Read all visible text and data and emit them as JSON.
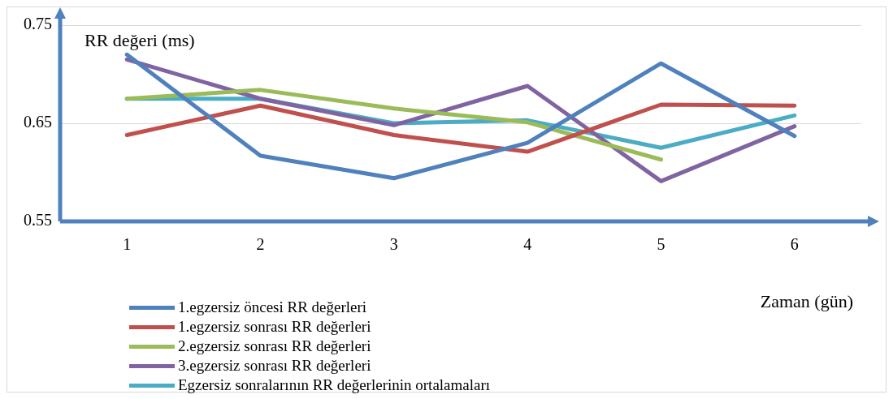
{
  "chart_data": {
    "type": "line",
    "xlabel": "Zaman (gün)",
    "ylabel": "RR değeri (ms)",
    "categories": [
      "1",
      "2",
      "3",
      "4",
      "5",
      "6"
    ],
    "series": [
      {
        "name": "1.egzersiz öncesi RR değerleri",
        "color": "#4f81bd",
        "values": [
          0.72,
          0.617,
          0.594,
          0.63,
          0.711,
          0.637
        ]
      },
      {
        "name": "1.egzersiz sonrası RR değerleri",
        "color": "#c0504d",
        "values": [
          0.638,
          0.668,
          0.638,
          0.621,
          0.669,
          0.668
        ]
      },
      {
        "name": "2.egzersiz sonrası RR değerleri",
        "color": "#9bbb59",
        "values": [
          0.675,
          0.684,
          0.665,
          0.651,
          0.613,
          null
        ]
      },
      {
        "name": "3.egzersiz sonrası RR değerleri",
        "color": "#8064a2",
        "values": [
          0.715,
          0.675,
          0.648,
          0.688,
          0.591,
          0.647
        ]
      },
      {
        "name": "Egzersiz sonralarının RR değerlerinin ortalamaları",
        "color": "#4bacc6",
        "values": [
          0.675,
          0.675,
          0.65,
          0.653,
          0.625,
          0.658
        ]
      }
    ],
    "ylim": [
      0.55,
      0.75
    ],
    "yticks": [
      0.55,
      0.65,
      0.75
    ],
    "grid": "y",
    "legend": "bottom left",
    "marker": "none",
    "line_style": "solid"
  }
}
